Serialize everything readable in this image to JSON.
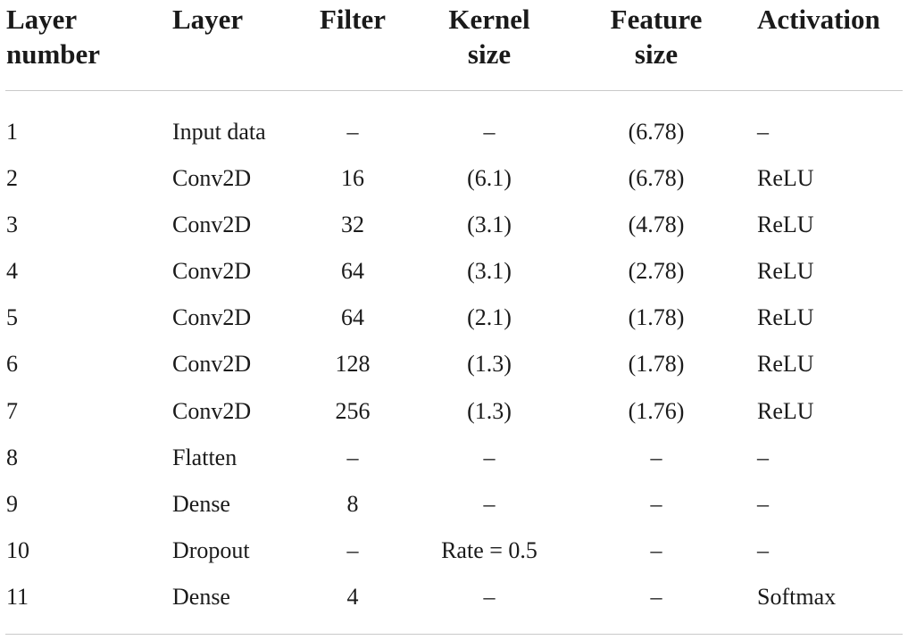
{
  "table": {
    "headers": {
      "layer_number": "Layer\nnumber",
      "layer": "Layer",
      "filter": "Filter",
      "kernel_size": "Kernel\nsize",
      "feature_size": "Feature\nsize",
      "activation": "Activation"
    },
    "rows": [
      {
        "num": "1",
        "layer": "Input data",
        "filter": "–",
        "kernel": "–",
        "feature": "(6.78)",
        "activation": "–"
      },
      {
        "num": "2",
        "layer": "Conv2D",
        "filter": "16",
        "kernel": "(6.1)",
        "feature": "(6.78)",
        "activation": "ReLU"
      },
      {
        "num": "3",
        "layer": "Conv2D",
        "filter": "32",
        "kernel": "(3.1)",
        "feature": "(4.78)",
        "activation": "ReLU"
      },
      {
        "num": "4",
        "layer": "Conv2D",
        "filter": "64",
        "kernel": "(3.1)",
        "feature": "(2.78)",
        "activation": "ReLU"
      },
      {
        "num": "5",
        "layer": "Conv2D",
        "filter": "64",
        "kernel": "(2.1)",
        "feature": "(1.78)",
        "activation": "ReLU"
      },
      {
        "num": "6",
        "layer": "Conv2D",
        "filter": "128",
        "kernel": "(1.3)",
        "feature": "(1.78)",
        "activation": "ReLU"
      },
      {
        "num": "7",
        "layer": "Conv2D",
        "filter": "256",
        "kernel": "(1.3)",
        "feature": "(1.76)",
        "activation": "ReLU"
      },
      {
        "num": "8",
        "layer": "Flatten",
        "filter": "–",
        "kernel": "–",
        "feature": "–",
        "activation": "–"
      },
      {
        "num": "9",
        "layer": "Dense",
        "filter": "8",
        "kernel": "–",
        "feature": "–",
        "activation": "–"
      },
      {
        "num": "10",
        "layer": "Dropout",
        "filter": "–",
        "kernel": "Rate = 0.5",
        "feature": "–",
        "activation": "–"
      },
      {
        "num": "11",
        "layer": "Dense",
        "filter": "4",
        "kernel": "–",
        "feature": "–",
        "activation": "Softmax"
      }
    ]
  }
}
